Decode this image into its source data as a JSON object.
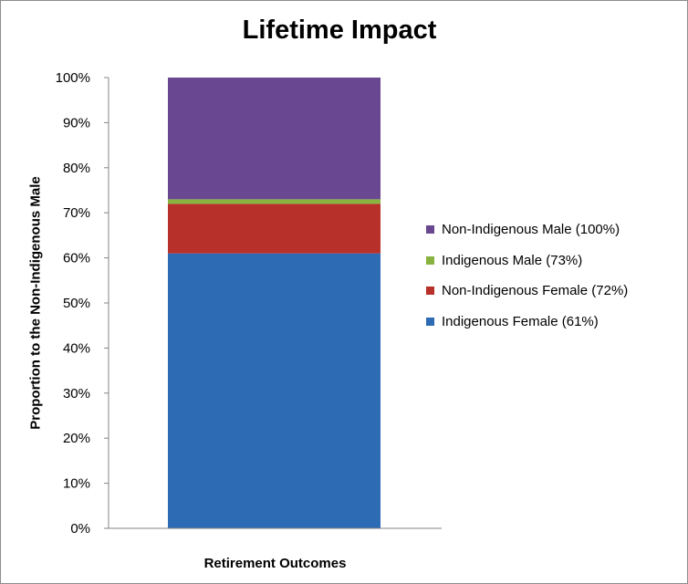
{
  "chart_data": {
    "type": "bar",
    "stacked": true,
    "title": "Lifetime Impact",
    "xlabel": "Retirement Outcomes",
    "ylabel": "Proportion to the Non-Indigenous  Male",
    "ylim": [
      0,
      100
    ],
    "y_ticks": [
      "0%",
      "10%",
      "20%",
      "30%",
      "40%",
      "50%",
      "60%",
      "70%",
      "80%",
      "90%",
      "100%"
    ],
    "categories": [
      ""
    ],
    "grid": false,
    "legend_position": "right",
    "series": [
      {
        "name": "Indigenous Female (61%)",
        "values": [
          61
        ],
        "color": "#2e6bb5"
      },
      {
        "name": "Non-Indigenous Female (72%)",
        "values": [
          11
        ],
        "color": "#b8302a"
      },
      {
        "name": "Indigenous Male (73%)",
        "values": [
          1
        ],
        "color": "#88b33f"
      },
      {
        "name": "Non-Indigenous Male (100%)",
        "values": [
          27
        ],
        "color": "#6a4791"
      }
    ]
  }
}
